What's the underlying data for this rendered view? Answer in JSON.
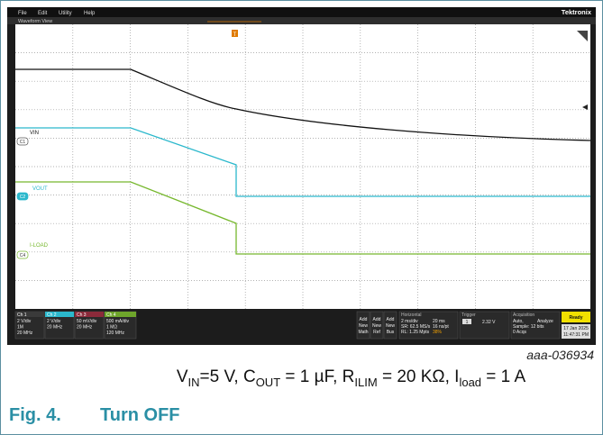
{
  "menu": [
    "File",
    "Edit",
    "Utility",
    "Help"
  ],
  "brand": "Tektronix",
  "view_title": "Waveform View",
  "trace_labels": [
    {
      "name": "VIN",
      "channel": "C1"
    },
    {
      "name": "VOUT",
      "channel": "C2"
    },
    {
      "name": "I-LOAD",
      "channel": "C4"
    }
  ],
  "channels": [
    {
      "name": "Ch 1",
      "lines": [
        "2 V/div",
        "1M",
        "20 MHz"
      ]
    },
    {
      "name": "Ch 2",
      "lines": [
        "2 V/div",
        "20 MHz"
      ]
    },
    {
      "name": "Ch 3",
      "lines": [
        "50 mV/div",
        "20 MHz"
      ]
    },
    {
      "name": "Ch 4",
      "lines": [
        "500 mA/div",
        "1 MΩ",
        "120 MHz"
      ]
    }
  ],
  "add_buttons": [
    [
      "Add",
      "New",
      "Math"
    ],
    [
      "Add",
      "New",
      "Ref"
    ],
    [
      "Add",
      "New",
      "Bus"
    ]
  ],
  "horizontal": {
    "title": "Horizontal",
    "lines": [
      "2 ms/div",
      "20 ms",
      "SR: 62.5 MS/s",
      "16 ns/pt",
      "RL: 1.25 Mpts",
      "38%"
    ]
  },
  "trigger": {
    "title": "Trigger",
    "channel": "1",
    "level": "2.32 V"
  },
  "acquisition": {
    "title": "Acquisition",
    "lines": [
      "Auto,",
      "Analyze",
      "Sample: 12 bits",
      "0 Acqs"
    ]
  },
  "status": "Ready",
  "date": "17 Jan 2025",
  "time": "11:47:31 PM",
  "figure_id": "aaa-036934",
  "caption_parts": [
    "V",
    "IN",
    "=5 V, C",
    "OUT",
    " = 1 µF, R",
    "ILIM",
    " = 20 KΩ, I",
    "load",
    " = 1 A"
  ],
  "fig_label": "Fig. 4.",
  "fig_title": "Turn OFF"
}
